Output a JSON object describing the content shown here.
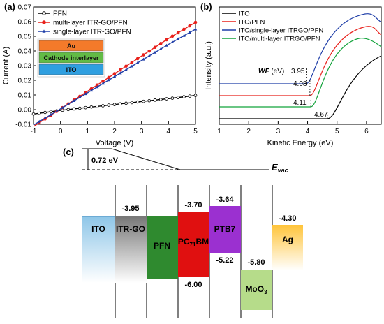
{
  "chart_data": [
    {
      "type": "line",
      "panel_label": "(a)",
      "xlabel": "Voltage (V)",
      "ylabel": "Current (A)",
      "xlim": [
        -1,
        5
      ],
      "ylim": [
        -0.01,
        0.07
      ],
      "xticks": [
        -1,
        0,
        1,
        2,
        3,
        4,
        5
      ],
      "yticks": [
        -0.01,
        0.0,
        0.01,
        0.02,
        0.03,
        0.04,
        0.05,
        0.06,
        0.07
      ],
      "ytick_labels": [
        "-0.01",
        "0.00",
        "0.01",
        "0.02",
        "0.03",
        "0.04",
        "0.05",
        "0.06",
        "0.07"
      ],
      "grid": false,
      "legend_position": "top-left",
      "series": [
        {
          "name": "PFN",
          "color": "#000000",
          "marker": "circle",
          "x": [
            -1,
            0,
            1,
            2,
            3,
            4,
            5
          ],
          "y": [
            -0.003,
            -0.0005,
            0.0015,
            0.0035,
            0.0055,
            0.0075,
            0.0097
          ]
        },
        {
          "name": "multi-layer ITR-GO/PFN",
          "color": "#e8201b",
          "marker": "circle",
          "x": [
            -1,
            0,
            1,
            2,
            3,
            4,
            5
          ],
          "y": [
            -0.0115,
            0.0005,
            0.0125,
            0.0245,
            0.0365,
            0.0485,
            0.0595
          ]
        },
        {
          "name": "single-layer ITR-GO/PFN",
          "color": "#1f3ea8",
          "marker": "triangle",
          "x": [
            -1,
            0,
            1,
            2,
            3,
            4,
            5
          ],
          "y": [
            -0.0105,
            0.0005,
            0.0115,
            0.0225,
            0.0335,
            0.0445,
            0.0548
          ]
        }
      ],
      "inset": {
        "layers": [
          {
            "label": "Au",
            "color": "#f47a2a"
          },
          {
            "label": "Cathode interlayer",
            "color": "#62bb46"
          },
          {
            "label": "ITO",
            "color": "#2f9fe0"
          }
        ]
      }
    },
    {
      "type": "line",
      "panel_label": "(b)",
      "xlabel": "Kinetic Energy (eV)",
      "ylabel": "Intensity (a.u.)",
      "xlim": [
        1,
        6.5
      ],
      "xticks": [
        1,
        2,
        3,
        4,
        5,
        6
      ],
      "legend_position": "top-left",
      "wf_label": "WF",
      "wf_unit": " (eV)",
      "series": [
        {
          "name": "ITO",
          "color": "#000000",
          "cutoff": 4.67,
          "cutoff_label": "4.67"
        },
        {
          "name": "ITO/PFN",
          "color": "#e8201b",
          "cutoff": 4.08,
          "cutoff_label": "4.08"
        },
        {
          "name": "ITO/single-layer ITRGO/PFN",
          "color": "#1f3ea8",
          "cutoff": 3.95,
          "cutoff_label": "3.95"
        },
        {
          "name": "ITO/multi-layer ITRGO/PFN",
          "color": "#12a33b",
          "cutoff": 4.11,
          "cutoff_label": "4.11"
        }
      ]
    },
    {
      "type": "diagram",
      "panel_label": "(c)",
      "vacuum_label": "E",
      "vacuum_sub": "vac",
      "shift_label": "0.72 eV",
      "materials": [
        {
          "name": "ITO",
          "color": "#8ec6e8",
          "top_label": ""
        },
        {
          "name": "ITR-GO",
          "color": "#888888",
          "top_label": "-3.95"
        },
        {
          "name": "PFN",
          "color": "#2f8a2f"
        },
        {
          "name": "PC",
          "sub": "71",
          "suffix": "BM",
          "color": "#e01010",
          "top_label": "-3.70",
          "bottom_label": "-6.00"
        },
        {
          "name": "PTB7",
          "color": "#9b30d0",
          "top_label": "-3.64",
          "bottom_label": "-5.22"
        },
        {
          "name": "MoO",
          "sub": "3",
          "color": "#b6dc8a",
          "top_label": "-5.80"
        },
        {
          "name": "Ag",
          "color": "#ffc43a",
          "top_label": "-4.30"
        }
      ]
    }
  ]
}
